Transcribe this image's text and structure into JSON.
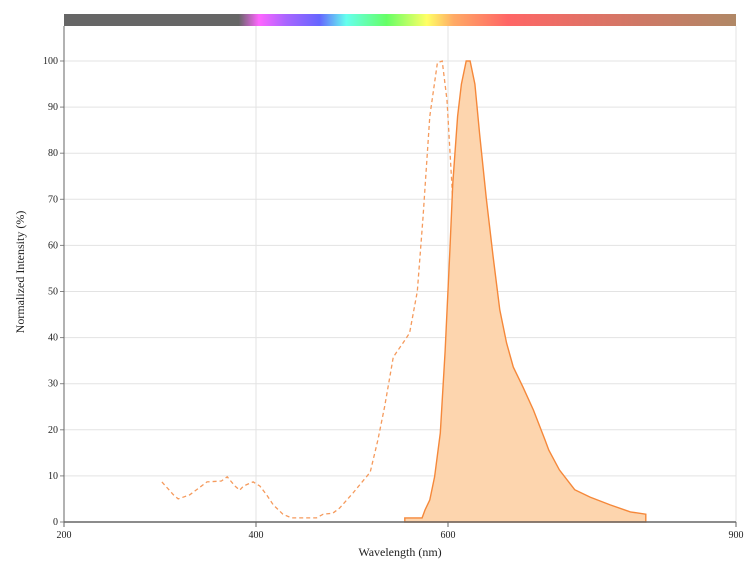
{
  "chart_data": {
    "type": "area",
    "xlabel": "Wavelength (nm)",
    "ylabel": "Normalized Intensity (%)",
    "xlim": [
      200,
      900
    ],
    "ylim": [
      0,
      100
    ],
    "x_ticks": [
      200,
      400,
      600,
      900
    ],
    "y_ticks": [
      0,
      10,
      20,
      30,
      40,
      50,
      60,
      70,
      80,
      90,
      100
    ],
    "grid": {
      "horizontal": true,
      "vertical_at": [
        400,
        600,
        900
      ]
    },
    "spectrum_bar": true,
    "series": [
      {
        "style": "dashed line",
        "color": "#f59a5c",
        "points": [
          [
            302,
            8.7
          ],
          [
            314,
            5.9
          ],
          [
            319,
            5
          ],
          [
            331,
            5.9
          ],
          [
            349,
            8.7
          ],
          [
            364,
            8.9
          ],
          [
            370,
            9.8
          ],
          [
            378,
            7.8
          ],
          [
            383,
            6.9
          ],
          [
            387,
            7.8
          ],
          [
            397,
            8.7
          ],
          [
            404,
            7.8
          ],
          [
            411,
            5.9
          ],
          [
            418,
            3.7
          ],
          [
            428,
            1.7
          ],
          [
            437,
            0.9
          ],
          [
            463,
            0.9
          ],
          [
            470,
            1.7
          ],
          [
            480,
            1.9
          ],
          [
            487,
            3
          ],
          [
            501,
            6.3
          ],
          [
            519,
            10.8
          ],
          [
            527,
            17.8
          ],
          [
            534,
            25
          ],
          [
            543,
            35.8
          ],
          [
            553,
            38.8
          ],
          [
            560,
            41
          ],
          [
            568,
            50
          ],
          [
            574,
            66
          ],
          [
            581,
            88
          ],
          [
            589,
            99.6
          ],
          [
            594,
            100
          ],
          [
            599,
            91.5
          ],
          [
            604,
            73.5
          ],
          [
            609,
            52
          ],
          [
            615,
            33.6
          ],
          [
            620,
            19.3
          ],
          [
            625,
            8.5
          ],
          [
            631,
            3
          ],
          [
            642,
            0.9
          ]
        ]
      },
      {
        "style": "filled area",
        "color": "#f5883a",
        "fill": "#fdd5ae",
        "points": [
          [
            555,
            0
          ],
          [
            555,
            0.9
          ],
          [
            573,
            0.9
          ],
          [
            576,
            2.6
          ],
          [
            581,
            4.8
          ],
          [
            586,
            9.8
          ],
          [
            592,
            19.3
          ],
          [
            597,
            37
          ],
          [
            602,
            59
          ],
          [
            605,
            73.5
          ],
          [
            610,
            88
          ],
          [
            614,
            95
          ],
          [
            619,
            100
          ],
          [
            623,
            100
          ],
          [
            628,
            95
          ],
          [
            633,
            84
          ],
          [
            640,
            70
          ],
          [
            647,
            57.6
          ],
          [
            654,
            46
          ],
          [
            661,
            38.8
          ],
          [
            668,
            33.6
          ],
          [
            678,
            29.3
          ],
          [
            689,
            24.3
          ],
          [
            701,
            17.8
          ],
          [
            705,
            15.6
          ],
          [
            716,
            11.3
          ],
          [
            732,
            7
          ],
          [
            748,
            5.4
          ],
          [
            769,
            3.7
          ],
          [
            790,
            2.2
          ],
          [
            806,
            1.7
          ],
          [
            806,
            0
          ]
        ]
      }
    ]
  }
}
